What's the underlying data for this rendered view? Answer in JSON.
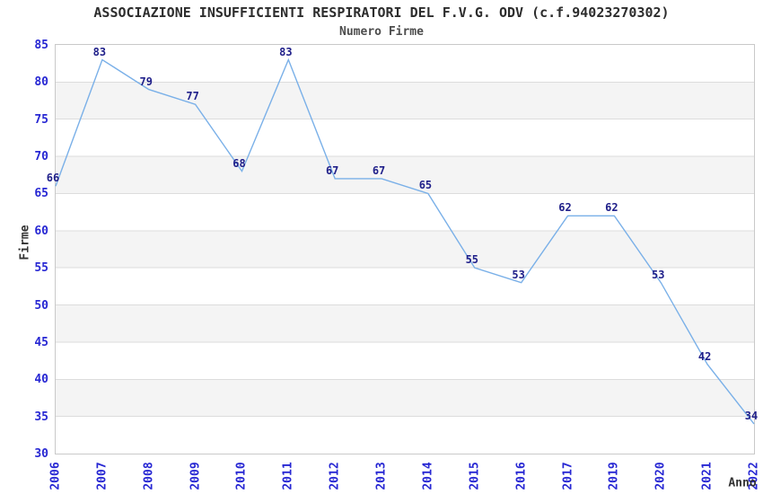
{
  "chart_data": {
    "type": "line",
    "title": "ASSOCIAZIONE INSUFFICIENTI RESPIRATORI DEL F.V.G. ODV (c.f.94023270302)",
    "subtitle": "Numero Firme",
    "xlabel": "Anno",
    "ylabel": "Firme",
    "categories": [
      "2006",
      "2007",
      "2008",
      "2009",
      "2010",
      "2011",
      "2012",
      "2013",
      "2014",
      "2015",
      "2016",
      "2017",
      "2019",
      "2020",
      "2021",
      "2022"
    ],
    "values": [
      66,
      83,
      79,
      77,
      68,
      83,
      67,
      67,
      65,
      55,
      53,
      62,
      62,
      53,
      42,
      34
    ],
    "data_labels_shown": true,
    "ylim": [
      30,
      85
    ],
    "yticks": [
      85,
      80,
      75,
      70,
      65,
      60,
      55,
      50,
      45,
      40,
      35,
      30
    ],
    "grid": true,
    "plot_bands_alternating": true,
    "legend": "none",
    "markers": "none",
    "colors": {
      "line": "#7ab0e8",
      "point_labels": "#20208a",
      "axis_ticks": "#2727d3",
      "titles": "#2d2d2d",
      "grid": "#dcdcdc",
      "band_fill": "#f4f4f4",
      "plot_border": "#c9c9c9"
    }
  }
}
